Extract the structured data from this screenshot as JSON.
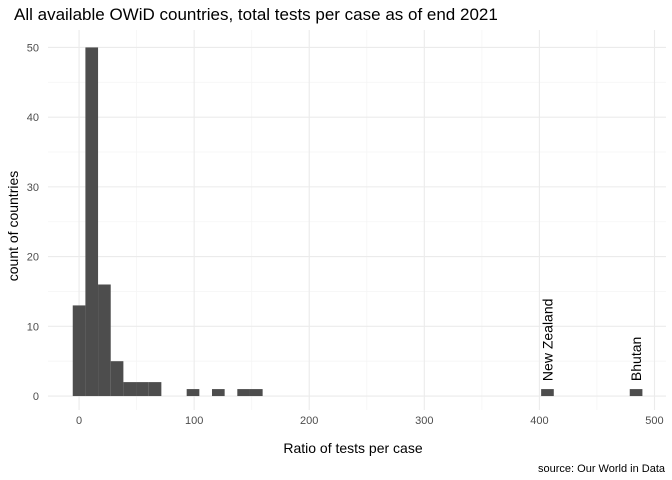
{
  "chart_data": {
    "type": "bar",
    "title": "All available OWiD countries, total tests per case as of end 2021",
    "xlabel": "Ratio of tests per case",
    "ylabel": "count of countries",
    "caption": "source: Our World in Data",
    "xlim": [
      -27,
      510
    ],
    "ylim": [
      -2,
      52.5
    ],
    "x_ticks": [
      0,
      100,
      200,
      300,
      400,
      500
    ],
    "y_ticks": [
      0,
      10,
      20,
      30,
      40,
      50
    ],
    "x_minor": [
      50,
      150,
      250,
      350,
      450
    ],
    "y_minor": [
      5,
      15,
      25,
      35,
      45
    ],
    "grid": true,
    "bin_width": 11,
    "bar_color": "#4d4d4d",
    "grid_major_color": "#ebebeb",
    "grid_minor_color": "#f5f5f5",
    "bins": [
      {
        "center": 0,
        "count": 13
      },
      {
        "center": 11,
        "count": 50
      },
      {
        "center": 22,
        "count": 16
      },
      {
        "center": 33,
        "count": 5
      },
      {
        "center": 44,
        "count": 2
      },
      {
        "center": 55,
        "count": 2
      },
      {
        "center": 66,
        "count": 2
      },
      {
        "center": 99,
        "count": 1
      },
      {
        "center": 121,
        "count": 1
      },
      {
        "center": 143,
        "count": 1
      },
      {
        "center": 154,
        "count": 1
      },
      {
        "center": 407,
        "count": 1
      },
      {
        "center": 484,
        "count": 1
      }
    ],
    "annotations": [
      {
        "label": "New Zealand",
        "x": 407
      },
      {
        "label": "Bhutan",
        "x": 484
      }
    ]
  }
}
